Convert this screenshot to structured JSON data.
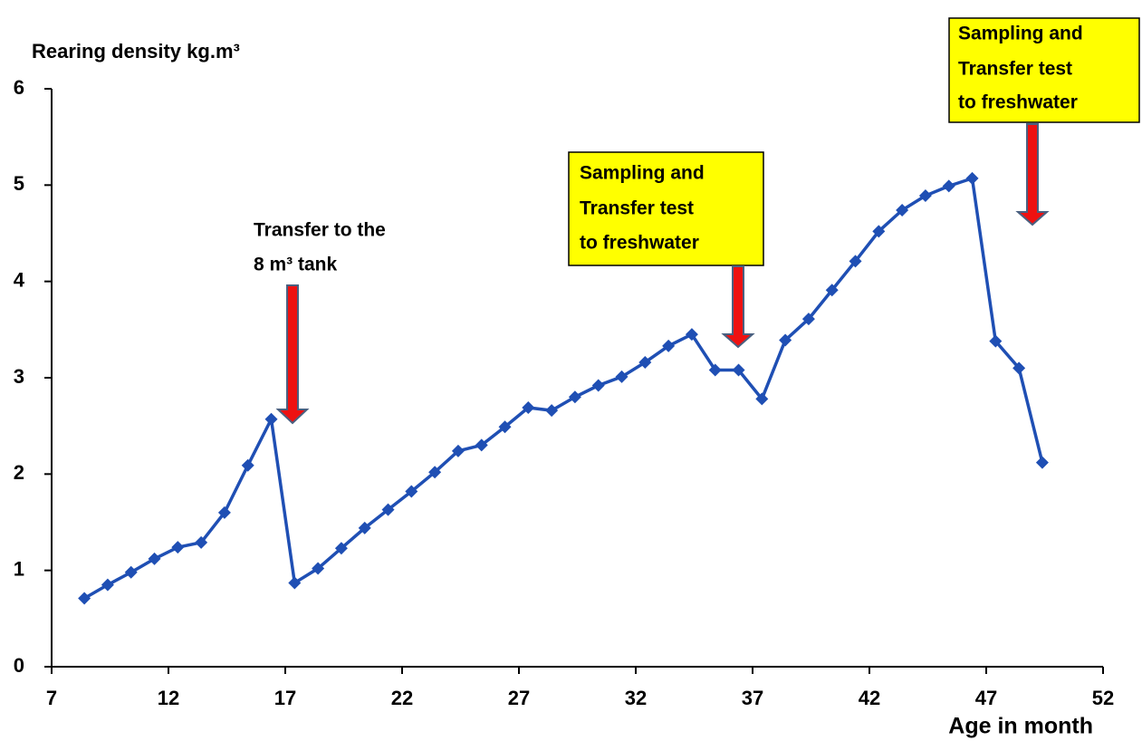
{
  "chart_data": {
    "type": "line",
    "title": "Rearing density kg.m³",
    "x_label": "Age in month",
    "x": [
      8.4,
      9.4,
      10.4,
      11.4,
      12.4,
      13.4,
      14.4,
      15.4,
      16.4,
      17.4,
      18.4,
      19.4,
      20.4,
      21.4,
      22.4,
      23.4,
      24.4,
      25.4,
      26.4,
      27.4,
      28.4,
      29.4,
      30.4,
      31.4,
      32.4,
      33.4,
      34.4,
      35.4,
      36.4,
      37.4,
      38.4,
      39.4,
      40.4,
      41.4,
      42.4,
      43.4,
      44.4,
      45.4,
      46.4,
      47.4,
      48.4,
      49.4
    ],
    "series": [
      {
        "name": "Rearing density",
        "color": "#1f4fb4",
        "values": [
          0.71,
          0.85,
          0.98,
          1.12,
          1.24,
          1.29,
          1.6,
          2.09,
          2.57,
          0.87,
          1.02,
          1.23,
          1.44,
          1.63,
          1.82,
          2.02,
          2.24,
          2.3,
          2.49,
          2.69,
          2.66,
          2.8,
          2.92,
          3.01,
          3.16,
          3.33,
          3.45,
          3.08,
          3.08,
          2.78,
          3.39,
          3.61,
          3.91,
          4.21,
          4.52,
          4.74,
          4.89,
          4.99,
          5.07,
          3.38,
          3.1,
          2.12
        ]
      }
    ],
    "xlim": [
      7,
      52
    ],
    "xticks": [
      7,
      12,
      17,
      22,
      27,
      32,
      37,
      42,
      47,
      52
    ],
    "ylim": [
      0,
      6
    ],
    "yticks": [
      0,
      1,
      2,
      3,
      4,
      5,
      6
    ],
    "annotations": [
      {
        "lines": [
          "Transfer to the",
          "8 m³ tank"
        ]
      },
      {
        "lines": [
          "Sampling and",
          "Transfer test",
          "to freshwater"
        ]
      },
      {
        "lines": [
          "Sampling and",
          "Transfer test",
          "to freshwater"
        ]
      }
    ]
  }
}
